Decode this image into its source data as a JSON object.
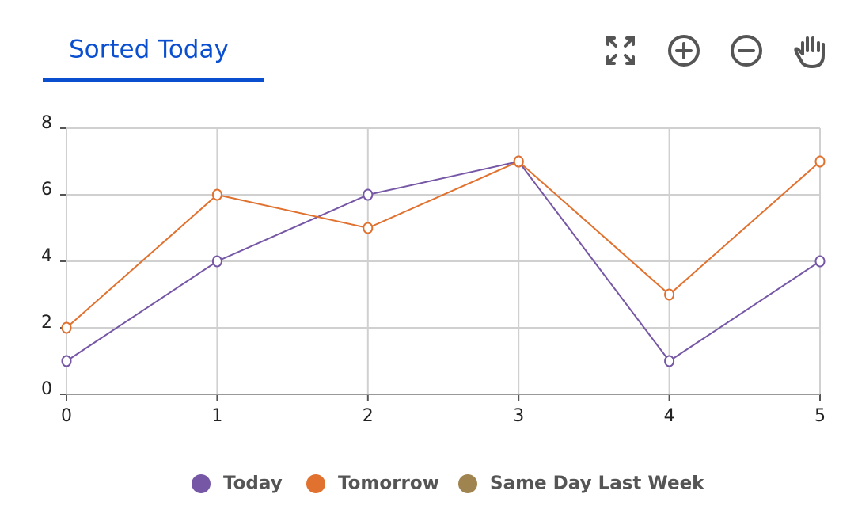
{
  "tab": {
    "label": "Sorted Today"
  },
  "chart_data": {
    "type": "line",
    "x": [
      0,
      1,
      2,
      3,
      4,
      5
    ],
    "series": [
      {
        "name": "Today",
        "color": "#7657a6",
        "values": [
          1,
          4,
          6,
          7,
          1,
          4
        ]
      },
      {
        "name": "Tomorrow",
        "color": "#e0712f",
        "values": [
          2,
          6,
          5,
          7,
          3,
          7
        ]
      },
      {
        "name": "Same Day Last Week",
        "color": "#a0844f",
        "values": [
          null,
          null,
          null,
          null,
          null,
          null
        ]
      }
    ],
    "xlim": [
      0,
      5
    ],
    "xticks": [
      0,
      1,
      2,
      3,
      4,
      5
    ],
    "ylim": [
      0,
      8
    ],
    "yticks": [
      0,
      2,
      4,
      6,
      8
    ],
    "grid": true,
    "legend": "bottom"
  }
}
